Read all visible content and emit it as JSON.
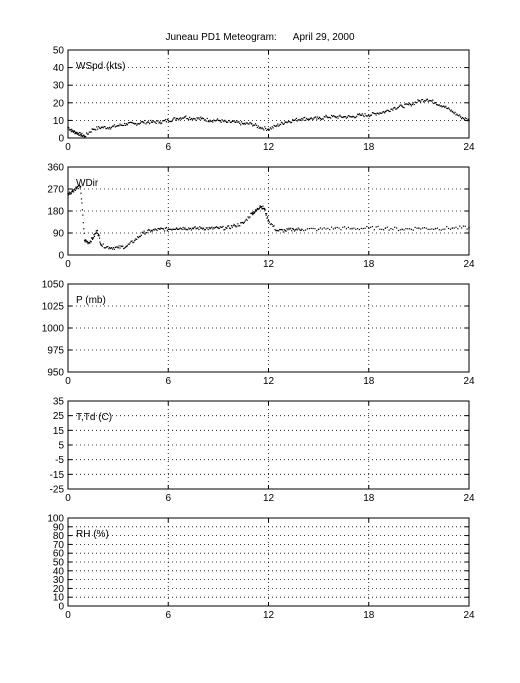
{
  "title": "Juneau PD1 Meteogram:      April 29, 2000",
  "chart_data": [
    {
      "type": "scatter",
      "label": "WSpd (kts)",
      "xlim": [
        0,
        24
      ],
      "ylim": [
        0,
        50
      ],
      "x_ticks": [
        0,
        6,
        12,
        18,
        24
      ],
      "y_ticks": [
        0,
        10,
        20,
        30,
        40,
        50
      ],
      "grid": true,
      "series": [
        {
          "x": [
            0,
            0.25,
            0.5,
            0.75,
            1,
            1.5,
            2,
            2.5,
            3,
            3.5,
            4,
            4.5,
            5,
            5.5,
            6,
            6.5,
            7,
            7.5,
            8,
            8.5,
            9,
            9.5,
            10,
            10.5,
            11,
            11.5,
            12,
            12.5,
            13,
            13.5,
            14,
            14.5,
            15,
            15.5,
            16,
            16.5,
            17,
            17.5,
            18,
            18.5,
            19,
            19.5,
            20,
            20.5,
            21,
            21.5,
            22,
            22.5,
            23,
            23.5,
            24
          ],
          "values": [
            6,
            4,
            3,
            2,
            1,
            5,
            6,
            6,
            7,
            8,
            8,
            9,
            9,
            9,
            10,
            11,
            12,
            11,
            11,
            10,
            10,
            9,
            9,
            8,
            8,
            6,
            5,
            7,
            9,
            10,
            11,
            11,
            11,
            12,
            12,
            12,
            12,
            13,
            13,
            14,
            15,
            17,
            18,
            19,
            21,
            22,
            20,
            18,
            15,
            12,
            10
          ]
        }
      ]
    },
    {
      "type": "scatter",
      "label": "WDir",
      "xlim": [
        0,
        24
      ],
      "ylim": [
        0,
        360
      ],
      "x_ticks": [
        0,
        6,
        12,
        18,
        24
      ],
      "y_ticks": [
        0,
        90,
        180,
        270,
        360
      ],
      "grid": true,
      "series": [
        {
          "x": [
            0,
            0.25,
            0.5,
            0.75,
            1,
            1.25,
            1.5,
            1.75,
            2,
            2.5,
            3,
            3.5,
            4,
            4.5,
            5,
            5.5,
            6,
            6.5,
            7,
            7.5,
            8,
            8.5,
            9,
            9.5,
            10,
            10.5,
            11,
            11.25,
            11.5,
            11.75,
            12,
            12.5,
            13,
            13.5,
            14,
            15,
            16,
            17,
            18,
            19,
            20,
            21,
            22,
            23,
            24
          ],
          "values": [
            250,
            260,
            275,
            280,
            60,
            50,
            70,
            100,
            40,
            30,
            30,
            35,
            60,
            90,
            100,
            105,
            105,
            110,
            110,
            108,
            110,
            108,
            110,
            110,
            120,
            130,
            170,
            180,
            200,
            190,
            140,
            100,
            100,
            105,
            105,
            105,
            110,
            108,
            110,
            110,
            105,
            110,
            108,
            110,
            112
          ]
        }
      ]
    },
    {
      "type": "scatter",
      "label": "P (mb)",
      "xlim": [
        0,
        24
      ],
      "ylim": [
        950,
        1050
      ],
      "x_ticks": [
        0,
        6,
        12,
        18,
        24
      ],
      "y_ticks": [
        950,
        975,
        1000,
        1025,
        1050
      ],
      "grid": true,
      "series": []
    },
    {
      "type": "scatter",
      "label": "T,Td (C)",
      "xlim": [
        0,
        24
      ],
      "ylim": [
        -25,
        35
      ],
      "x_ticks": [
        0,
        6,
        12,
        18,
        24
      ],
      "y_ticks": [
        -25,
        -15,
        -5,
        5,
        15,
        25,
        35
      ],
      "grid": true,
      "series": []
    },
    {
      "type": "scatter",
      "label": "RH (%)",
      "xlim": [
        0,
        24
      ],
      "ylim": [
        0,
        100
      ],
      "x_ticks": [
        0,
        6,
        12,
        18,
        24
      ],
      "y_ticks": [
        0,
        10,
        20,
        30,
        40,
        50,
        60,
        70,
        80,
        90,
        100
      ],
      "grid": true,
      "series": []
    }
  ]
}
